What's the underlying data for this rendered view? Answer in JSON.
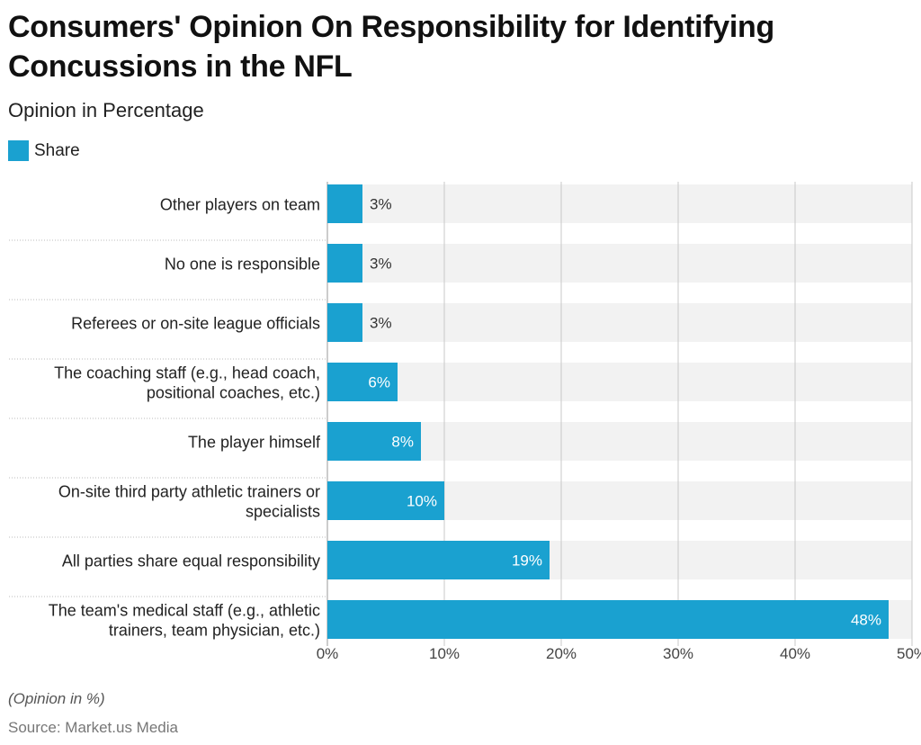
{
  "title": "Consumers' Opinion On Responsibility for Identifying Concussions in the NFL",
  "subtitle": "Opinion in Percentage",
  "legend": {
    "label": "Share"
  },
  "colors": {
    "bar": "#1aa1d0",
    "band": "#f2f2f2",
    "grid": "#c8c8c8"
  },
  "footer": {
    "note": "(Opinion in %)",
    "source": "Source: Market.us Media"
  },
  "chart_data": {
    "type": "bar",
    "orientation": "horizontal",
    "categories": [
      [
        "Other players on team"
      ],
      [
        "No one is responsible"
      ],
      [
        "Referees or on-site league officials"
      ],
      [
        "The coaching staff (e.g., head coach,",
        "positional coaches, etc.)"
      ],
      [
        "The player himself"
      ],
      [
        "On-site third party athletic trainers or",
        "specialists"
      ],
      [
        "All parties share equal responsibility"
      ],
      [
        "The team's medical staff (e.g., athletic",
        "trainers, team physician, etc.)"
      ]
    ],
    "series": [
      {
        "name": "Share",
        "values": [
          3,
          3,
          3,
          6,
          8,
          10,
          19,
          48
        ],
        "labels": [
          "3%",
          "3%",
          "3%",
          "6%",
          "8%",
          "10%",
          "19%",
          "48%"
        ]
      }
    ],
    "xlim": [
      0,
      50
    ],
    "xticks": [
      0,
      10,
      20,
      30,
      40,
      50
    ],
    "xtick_labels": [
      "0%",
      "10%",
      "20%",
      "30%",
      "40%",
      "50%"
    ],
    "xlabel": "",
    "ylabel": ""
  }
}
